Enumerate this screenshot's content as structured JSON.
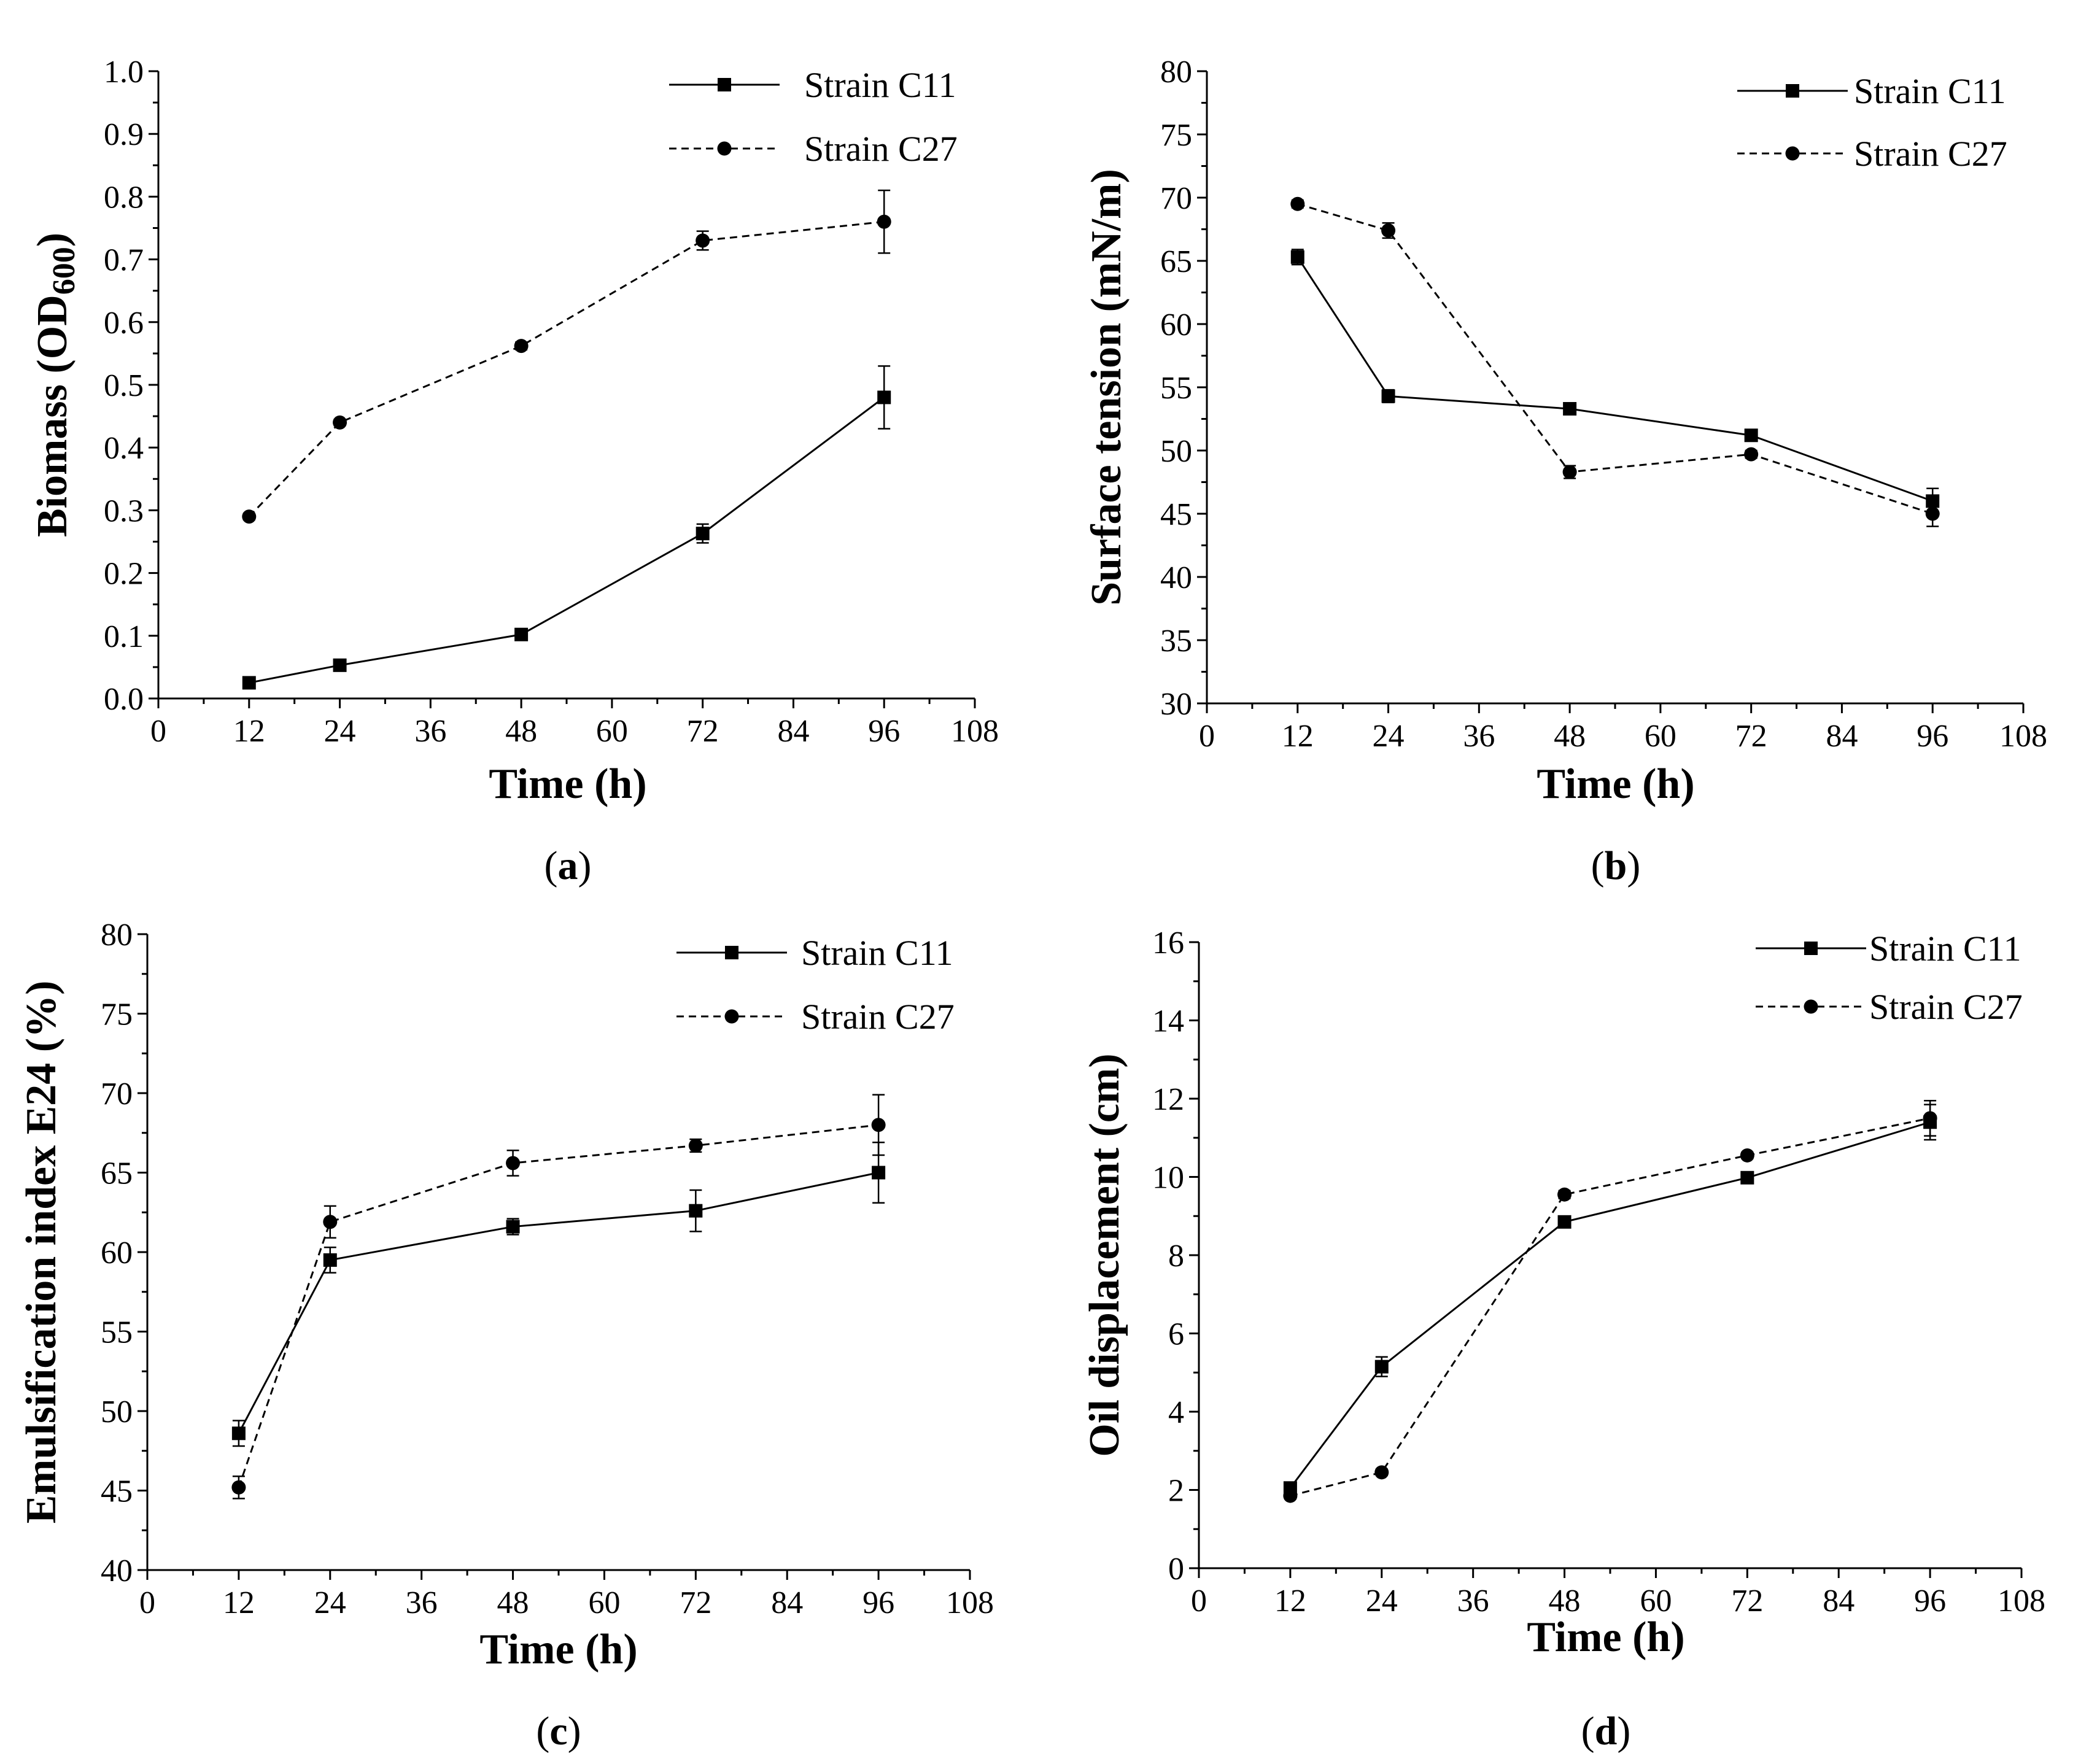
{
  "figure": {
    "background": "#ffffff",
    "series_color": "#000000",
    "series_styles": {
      "Strain C11": {
        "line": "solid",
        "marker": "square"
      },
      "Strain C27": {
        "line": "dashed",
        "marker": "circle"
      }
    }
  },
  "chart_data": [
    {
      "panel": "a",
      "panel_label_prefix": "(",
      "panel_label_letter": "a",
      "panel_label_suffix": ")",
      "type": "line",
      "title": "",
      "xlabel": "Time (h)",
      "ylabel_main": "Biomass (OD",
      "ylabel_sub": "600",
      "ylabel_end": ")",
      "xlim": [
        0,
        108
      ],
      "ylim": [
        0,
        1.0
      ],
      "xticks": [
        "0",
        "12",
        "24",
        "36",
        "48",
        "60",
        "72",
        "84",
        "96",
        "108"
      ],
      "yticks": [
        "0.0",
        "0.1",
        "0.2",
        "0.3",
        "0.4",
        "0.5",
        "0.6",
        "0.7",
        "0.8",
        "0.9",
        "1.0"
      ],
      "x": [
        12,
        24,
        48,
        72,
        96
      ],
      "series": [
        {
          "name": "Strain C11",
          "values": [
            0.025,
            0.053,
            0.102,
            0.263,
            0.48
          ],
          "errors": [
            0.004,
            0.005,
            0.006,
            0.015,
            0.05
          ]
        },
        {
          "name": "Strain C27",
          "values": [
            0.29,
            0.44,
            0.562,
            0.73,
            0.76
          ],
          "errors": [
            0.005,
            0.005,
            0.006,
            0.015,
            0.05
          ]
        }
      ],
      "legend": "top-right"
    },
    {
      "panel": "b",
      "panel_label_prefix": "(",
      "panel_label_letter": "b",
      "panel_label_suffix": ")",
      "type": "line",
      "title": "",
      "xlabel": "Time (h)",
      "ylabel": "Surface tension (mN/m)",
      "xlim": [
        0,
        108
      ],
      "ylim": [
        30,
        80
      ],
      "xticks": [
        "0",
        "12",
        "24",
        "36",
        "48",
        "60",
        "72",
        "84",
        "96",
        "108"
      ],
      "yticks": [
        "30",
        "35",
        "40",
        "45",
        "50",
        "55",
        "60",
        "65",
        "70",
        "75",
        "80"
      ],
      "x": [
        12,
        24,
        48,
        72,
        96
      ],
      "series": [
        {
          "name": "Strain C11",
          "values": [
            65.3,
            54.3,
            53.3,
            51.2,
            46.0
          ],
          "errors": [
            0.6,
            0.5,
            0.3,
            0.3,
            1.0
          ]
        },
        {
          "name": "Strain C27",
          "values": [
            69.5,
            67.4,
            48.3,
            49.7,
            45.0
          ],
          "errors": [
            0.3,
            0.6,
            0.5,
            0.3,
            1.0
          ]
        }
      ],
      "legend": "top-right"
    },
    {
      "panel": "c",
      "panel_label_prefix": "(",
      "panel_label_letter": "c",
      "panel_label_suffix": ")",
      "type": "line",
      "title": "",
      "xlabel": "Time (h)",
      "ylabel": "Emulsification index E24 (%)",
      "xlim": [
        0,
        108
      ],
      "ylim": [
        40,
        80
      ],
      "xticks": [
        "0",
        "12",
        "24",
        "36",
        "48",
        "60",
        "72",
        "84",
        "96",
        "108"
      ],
      "yticks": [
        "40",
        "45",
        "50",
        "55",
        "60",
        "65",
        "70",
        "75",
        "80"
      ],
      "x": [
        12,
        24,
        48,
        72,
        96
      ],
      "series": [
        {
          "name": "Strain C11",
          "values": [
            48.6,
            59.5,
            61.6,
            62.6,
            65.0
          ],
          "errors": [
            0.8,
            0.8,
            0.5,
            1.3,
            1.9
          ]
        },
        {
          "name": "Strain C27",
          "values": [
            45.2,
            61.9,
            65.6,
            66.7,
            68.0
          ],
          "errors": [
            0.7,
            1.0,
            0.8,
            0.4,
            1.9
          ]
        }
      ],
      "legend": "top-right"
    },
    {
      "panel": "d",
      "panel_label_prefix": "(",
      "panel_label_letter": "d",
      "panel_label_suffix": ")",
      "type": "line",
      "title": "",
      "xlabel": "Time (h)",
      "ylabel": "Oil displacement (cm)",
      "xlim": [
        0,
        108
      ],
      "ylim": [
        0,
        16
      ],
      "xticks": [
        "0",
        "12",
        "24",
        "36",
        "48",
        "60",
        "72",
        "84",
        "96",
        "108"
      ],
      "yticks": [
        "0",
        "2",
        "4",
        "6",
        "8",
        "10",
        "12",
        "14",
        "16"
      ],
      "x": [
        12,
        24,
        48,
        72,
        96
      ],
      "series": [
        {
          "name": "Strain C11",
          "values": [
            2.05,
            5.15,
            8.85,
            9.98,
            11.4
          ],
          "errors": [
            0.1,
            0.25,
            0.1,
            0.1,
            0.45
          ]
        },
        {
          "name": "Strain C27",
          "values": [
            1.85,
            2.45,
            9.55,
            10.55,
            11.5
          ],
          "errors": [
            0.08,
            0.08,
            0.1,
            0.08,
            0.45
          ]
        }
      ],
      "legend": "top-right"
    }
  ]
}
